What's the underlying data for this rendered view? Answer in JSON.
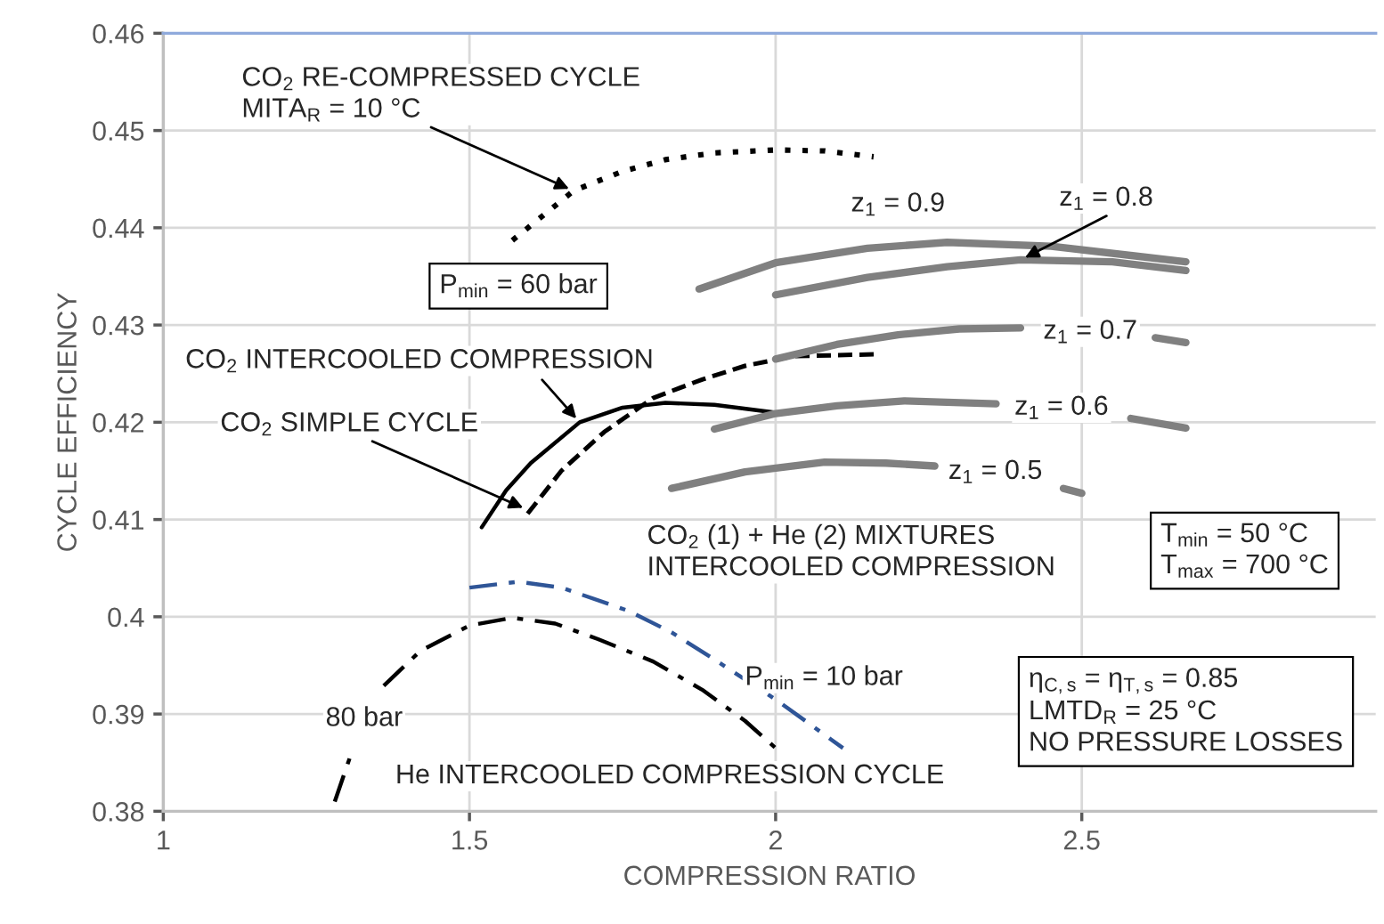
{
  "chart_data": {
    "type": "line",
    "xlabel": "COMPRESSION RATIO",
    "ylabel": "CYCLE EFFICIENCY",
    "xlim": [
      1,
      2.98
    ],
    "xticks": [
      1,
      1.5,
      2,
      2.5
    ],
    "ylim": [
      0.38,
      0.46
    ],
    "yticks": [
      0.38,
      0.39,
      0.4,
      0.41,
      0.42,
      0.43,
      0.44,
      0.45,
      0.46
    ],
    "grid": true,
    "series": [
      {
        "color": "#000000",
        "line_style": "dotted",
        "x": [
          1.57,
          1.67,
          1.75,
          1.82,
          1.9,
          2.0,
          2.08,
          2.16
        ],
        "values": [
          0.4387,
          0.4438,
          0.4458,
          0.447,
          0.4477,
          0.448,
          0.4479,
          0.4473
        ]
      },
      {
        "color": "#000000",
        "line_style": "solid",
        "x": [
          1.52,
          1.56,
          1.6,
          1.68,
          1.75,
          1.82,
          1.9,
          2.0
        ],
        "values": [
          0.4092,
          0.413,
          0.4158,
          0.42,
          0.4215,
          0.422,
          0.4218,
          0.421
        ]
      },
      {
        "color": "#000000",
        "line_style": "dashed",
        "x": [
          1.595,
          1.65,
          1.72,
          1.8,
          1.88,
          1.95,
          2.03,
          2.17
        ],
        "values": [
          0.4106,
          0.415,
          0.419,
          0.4225,
          0.4244,
          0.4258,
          0.4268,
          0.427
        ]
      },
      {
        "name": "z$_{1}$ = 0.9",
        "color": "#808080",
        "line_style": "solid",
        "x": [
          1.875,
          2.0,
          2.15,
          2.28,
          2.45,
          2.67
        ],
        "values": [
          0.4337,
          0.4364,
          0.4379,
          0.4385,
          0.4381,
          0.4365
        ]
      },
      {
        "name": "z$_{1}$ = 0.8",
        "color": "#808080",
        "line_style": "solid",
        "x": [
          2.0,
          2.15,
          2.28,
          2.4,
          2.55,
          2.67
        ],
        "values": [
          0.4331,
          0.4349,
          0.436,
          0.4367,
          0.4365,
          0.4356
        ]
      },
      {
        "name": "z$_{1}$ = 0.7",
        "color": "#808080",
        "line_style": "solid",
        "x": [
          2.0,
          2.1,
          2.2,
          2.3,
          2.4,
          2.5,
          2.62,
          2.67
        ],
        "values": [
          0.4265,
          0.428,
          0.429,
          0.4296,
          0.4297,
          null,
          0.4287,
          0.4282
        ]
      },
      {
        "name": "z$_{1}$ = 0.6",
        "color": "#808080",
        "line_style": "solid",
        "x": [
          1.9,
          2.0,
          2.1,
          2.21,
          2.36,
          2.45,
          2.58,
          2.67
        ],
        "values": [
          0.4193,
          0.4209,
          0.4217,
          0.4222,
          0.4219,
          null,
          0.4204,
          0.4194
        ]
      },
      {
        "name": "z$_{1}$ = 0.5",
        "color": "#808080",
        "line_style": "solid",
        "x": [
          1.83,
          1.95,
          2.08,
          2.18,
          2.26,
          2.38,
          2.47,
          2.5
        ],
        "values": [
          0.4132,
          0.4149,
          0.4159,
          0.4158,
          0.4155,
          null,
          0.4132,
          0.4127
        ]
      },
      {
        "name": "P$_{min}$ = 10 bar",
        "color": "#2f5597",
        "line_style": "dashdot",
        "x": [
          1.5,
          1.58,
          1.65,
          1.76,
          1.83,
          1.9,
          2.0,
          2.11
        ],
        "values": [
          0.403,
          0.4036,
          0.403,
          0.4006,
          0.3984,
          0.3956,
          0.3915,
          0.3865
        ]
      },
      {
        "name": "80 bar",
        "color": "#000000",
        "line_style": "dashdot",
        "x": [
          1.28,
          1.31,
          1.33,
          1.36,
          1.42,
          1.5,
          1.57,
          1.64,
          1.71,
          1.8,
          1.88,
          1.95,
          2.0
        ],
        "values": [
          0.381,
          0.3865,
          null,
          0.3929,
          0.3965,
          0.3991,
          0.3999,
          0.3993,
          0.3977,
          0.3954,
          0.3925,
          0.3893,
          0.3865
        ]
      }
    ],
    "annotations": [
      {
        "text": "CO$_{2}$ RE-COMPRESSED CYCLE\nMITA$_{R}$ = 10 °C",
        "x": 1.67,
        "y": 0.4438
      },
      "P$_{min}$ = 60 bar",
      {
        "text": "CO$_{2}$ INTERCOOLED COMPRESSION",
        "x": 1.68,
        "y": 0.42
      },
      {
        "text": "CO$_{2}$ SIMPLE CYCLE",
        "x": 1.595,
        "y": 0.411
      },
      "CO$_{2}$ (1) + He (2) MIXTURES\nINTERCOOLED COMPRESSION",
      "T$_{min}$ = 50 °C\nT$_{max}$ = 700 °C",
      "η$_{C,s}$ = η$_{T,s}$ = 0.85\nLMTD$_{R}$ = 25 °C\nNO PRESSURE LOSSES",
      "He INTERCOOLED COMPRESSION CYCLE"
    ]
  }
}
